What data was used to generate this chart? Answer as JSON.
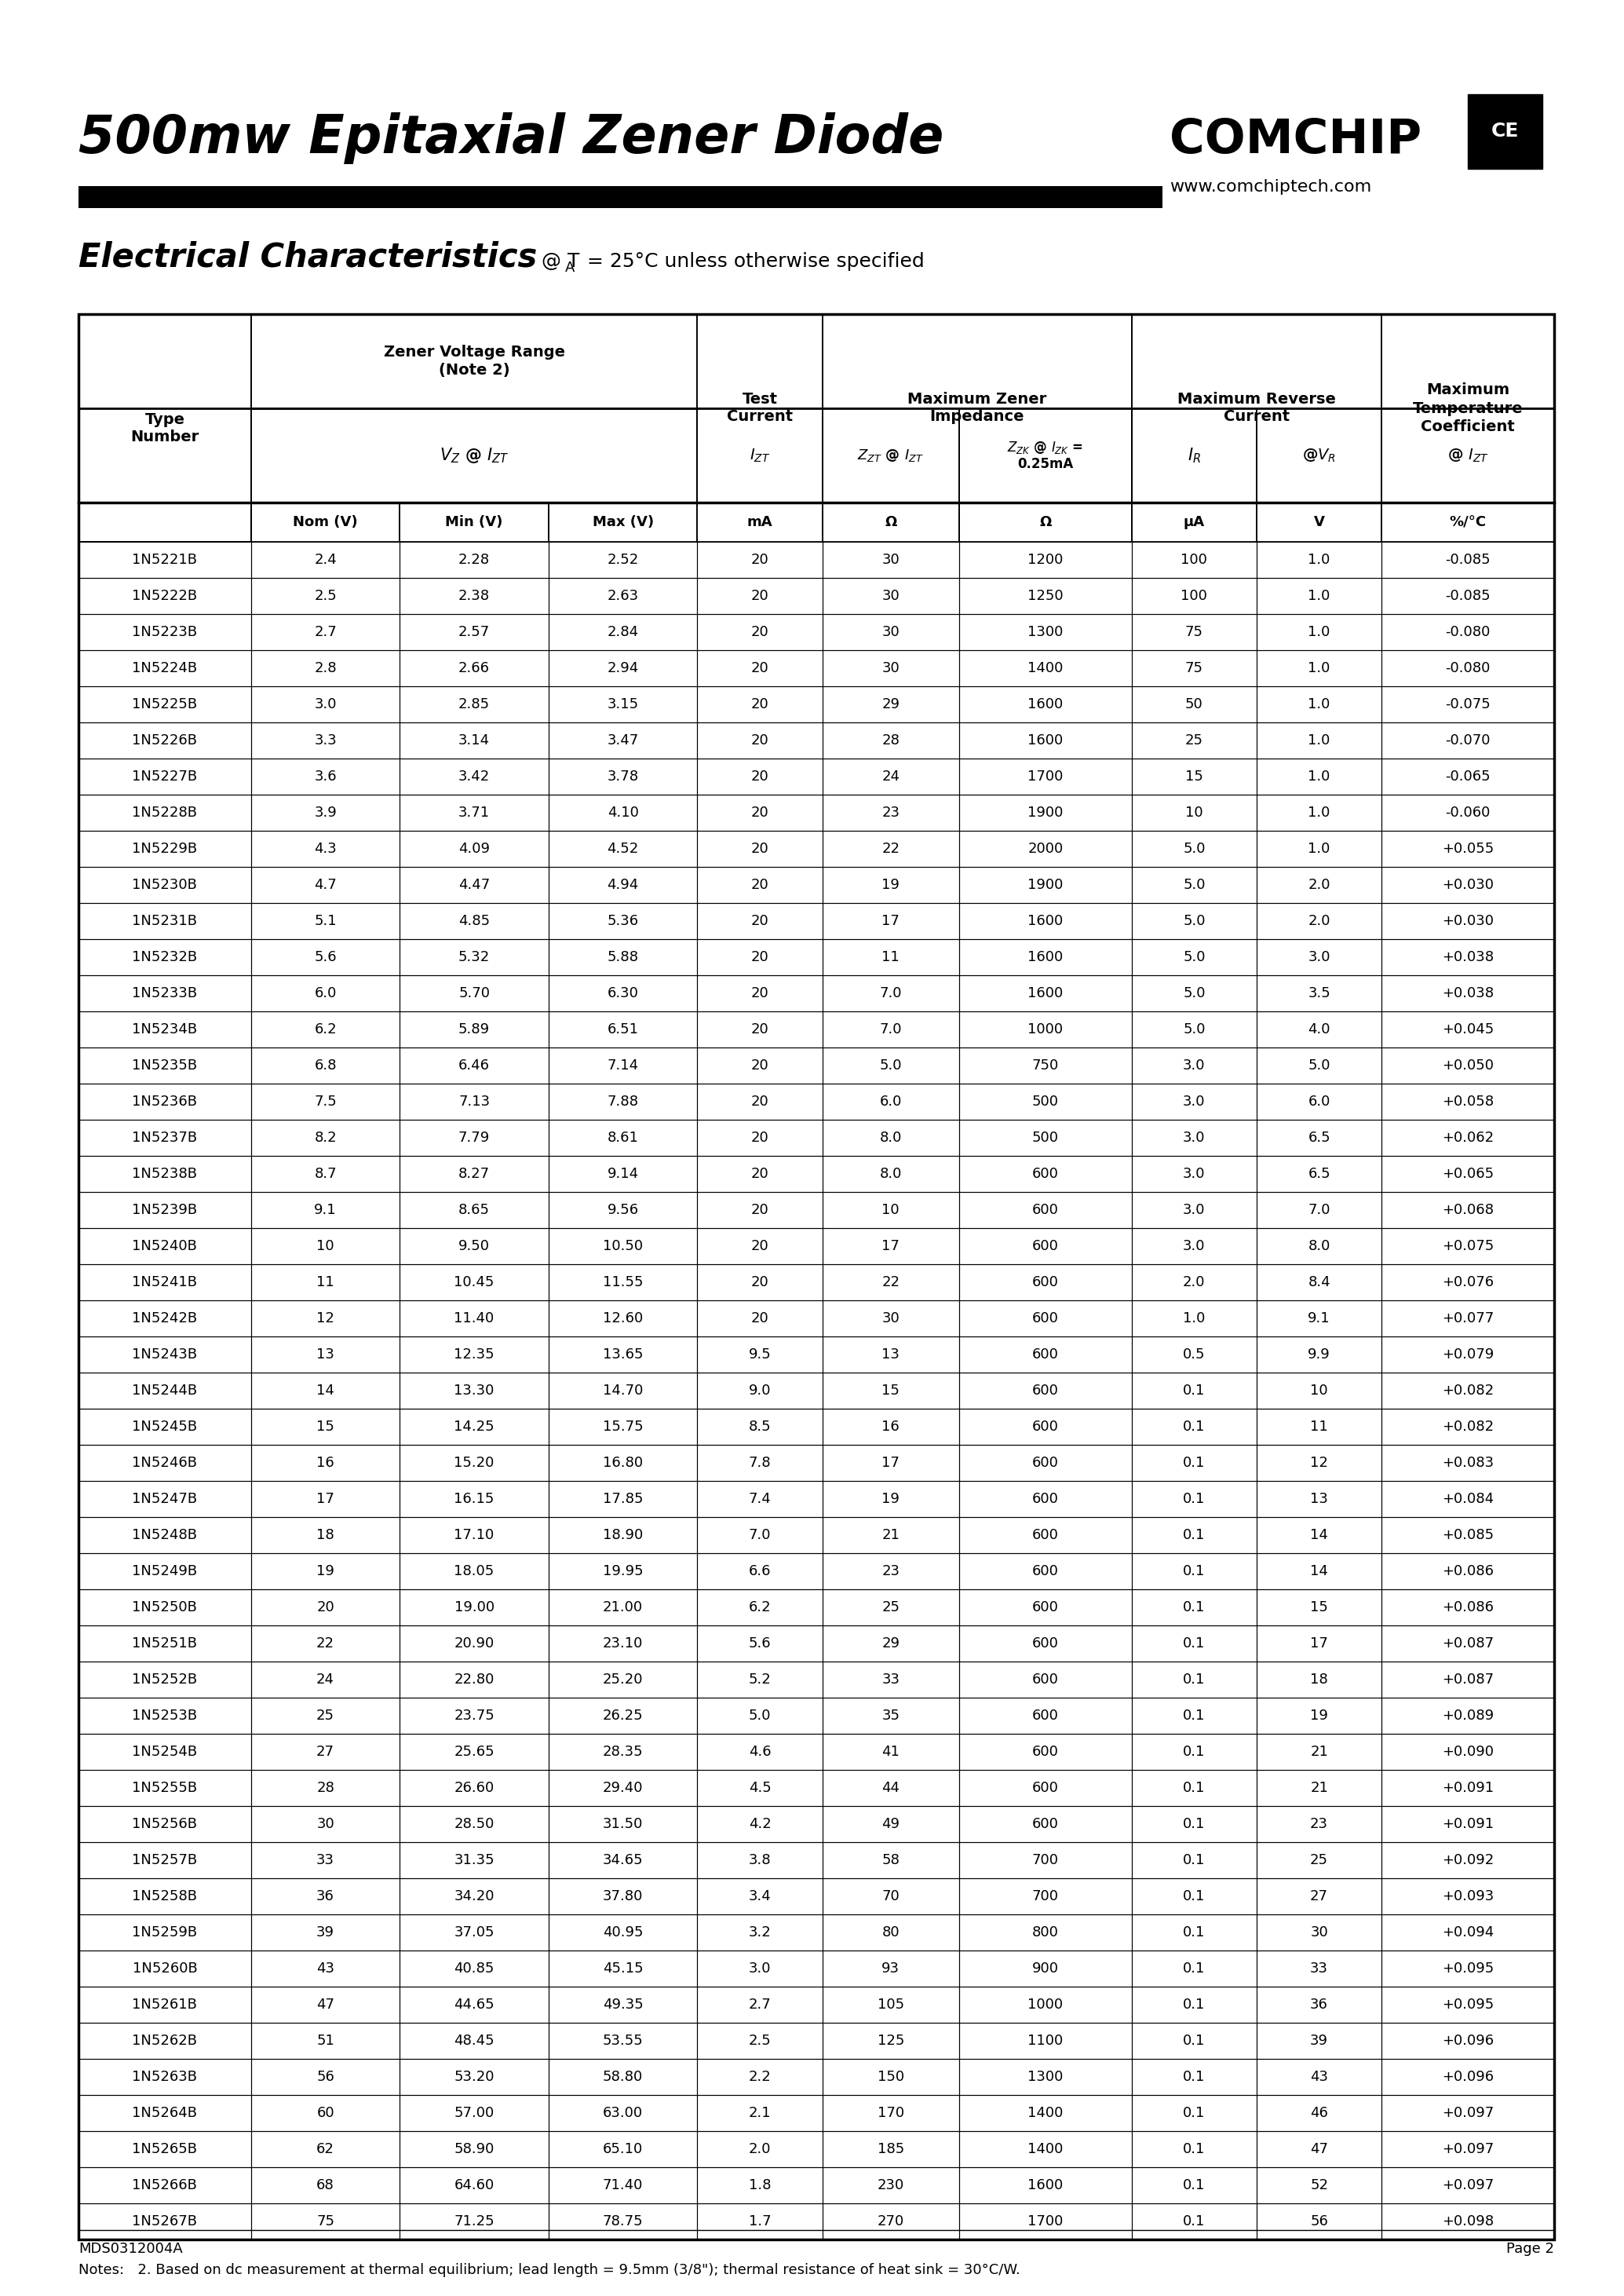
{
  "title": "500mw Epitaxial Zener Diode",
  "subtitle_label": "Electrical Characteristics",
  "subtitle_note": "@ TA = 25°C unless otherwise specified",
  "company": "COMCHIP",
  "website": "www.comchiptech.com",
  "note": "Notes:   2. Based on dc measurement at thermal equilibrium; lead length = 9.5mm (3/8\"); thermal resistance of heat sink = 30°C/W.",
  "table_data": [
    [
      "1N5221B",
      "2.4",
      "2.28",
      "2.52",
      "20",
      "30",
      "1200",
      "100",
      "1.0",
      "-0.085"
    ],
    [
      "1N5222B",
      "2.5",
      "2.38",
      "2.63",
      "20",
      "30",
      "1250",
      "100",
      "1.0",
      "-0.085"
    ],
    [
      "1N5223B",
      "2.7",
      "2.57",
      "2.84",
      "20",
      "30",
      "1300",
      "75",
      "1.0",
      "-0.080"
    ],
    [
      "1N5224B",
      "2.8",
      "2.66",
      "2.94",
      "20",
      "30",
      "1400",
      "75",
      "1.0",
      "-0.080"
    ],
    [
      "1N5225B",
      "3.0",
      "2.85",
      "3.15",
      "20",
      "29",
      "1600",
      "50",
      "1.0",
      "-0.075"
    ],
    [
      "1N5226B",
      "3.3",
      "3.14",
      "3.47",
      "20",
      "28",
      "1600",
      "25",
      "1.0",
      "-0.070"
    ],
    [
      "1N5227B",
      "3.6",
      "3.42",
      "3.78",
      "20",
      "24",
      "1700",
      "15",
      "1.0",
      "-0.065"
    ],
    [
      "1N5228B",
      "3.9",
      "3.71",
      "4.10",
      "20",
      "23",
      "1900",
      "10",
      "1.0",
      "-0.060"
    ],
    [
      "1N5229B",
      "4.3",
      "4.09",
      "4.52",
      "20",
      "22",
      "2000",
      "5.0",
      "1.0",
      "+0.055"
    ],
    [
      "1N5230B",
      "4.7",
      "4.47",
      "4.94",
      "20",
      "19",
      "1900",
      "5.0",
      "2.0",
      "+0.030"
    ],
    [
      "1N5231B",
      "5.1",
      "4.85",
      "5.36",
      "20",
      "17",
      "1600",
      "5.0",
      "2.0",
      "+0.030"
    ],
    [
      "1N5232B",
      "5.6",
      "5.32",
      "5.88",
      "20",
      "11",
      "1600",
      "5.0",
      "3.0",
      "+0.038"
    ],
    [
      "1N5233B",
      "6.0",
      "5.70",
      "6.30",
      "20",
      "7.0",
      "1600",
      "5.0",
      "3.5",
      "+0.038"
    ],
    [
      "1N5234B",
      "6.2",
      "5.89",
      "6.51",
      "20",
      "7.0",
      "1000",
      "5.0",
      "4.0",
      "+0.045"
    ],
    [
      "1N5235B",
      "6.8",
      "6.46",
      "7.14",
      "20",
      "5.0",
      "750",
      "3.0",
      "5.0",
      "+0.050"
    ],
    [
      "1N5236B",
      "7.5",
      "7.13",
      "7.88",
      "20",
      "6.0",
      "500",
      "3.0",
      "6.0",
      "+0.058"
    ],
    [
      "1N5237B",
      "8.2",
      "7.79",
      "8.61",
      "20",
      "8.0",
      "500",
      "3.0",
      "6.5",
      "+0.062"
    ],
    [
      "1N5238B",
      "8.7",
      "8.27",
      "9.14",
      "20",
      "8.0",
      "600",
      "3.0",
      "6.5",
      "+0.065"
    ],
    [
      "1N5239B",
      "9.1",
      "8.65",
      "9.56",
      "20",
      "10",
      "600",
      "3.0",
      "7.0",
      "+0.068"
    ],
    [
      "1N5240B",
      "10",
      "9.50",
      "10.50",
      "20",
      "17",
      "600",
      "3.0",
      "8.0",
      "+0.075"
    ],
    [
      "1N5241B",
      "11",
      "10.45",
      "11.55",
      "20",
      "22",
      "600",
      "2.0",
      "8.4",
      "+0.076"
    ],
    [
      "1N5242B",
      "12",
      "11.40",
      "12.60",
      "20",
      "30",
      "600",
      "1.0",
      "9.1",
      "+0.077"
    ],
    [
      "1N5243B",
      "13",
      "12.35",
      "13.65",
      "9.5",
      "13",
      "600",
      "0.5",
      "9.9",
      "+0.079"
    ],
    [
      "1N5244B",
      "14",
      "13.30",
      "14.70",
      "9.0",
      "15",
      "600",
      "0.1",
      "10",
      "+0.082"
    ],
    [
      "1N5245B",
      "15",
      "14.25",
      "15.75",
      "8.5",
      "16",
      "600",
      "0.1",
      "11",
      "+0.082"
    ],
    [
      "1N5246B",
      "16",
      "15.20",
      "16.80",
      "7.8",
      "17",
      "600",
      "0.1",
      "12",
      "+0.083"
    ],
    [
      "1N5247B",
      "17",
      "16.15",
      "17.85",
      "7.4",
      "19",
      "600",
      "0.1",
      "13",
      "+0.084"
    ],
    [
      "1N5248B",
      "18",
      "17.10",
      "18.90",
      "7.0",
      "21",
      "600",
      "0.1",
      "14",
      "+0.085"
    ],
    [
      "1N5249B",
      "19",
      "18.05",
      "19.95",
      "6.6",
      "23",
      "600",
      "0.1",
      "14",
      "+0.086"
    ],
    [
      "1N5250B",
      "20",
      "19.00",
      "21.00",
      "6.2",
      "25",
      "600",
      "0.1",
      "15",
      "+0.086"
    ],
    [
      "1N5251B",
      "22",
      "20.90",
      "23.10",
      "5.6",
      "29",
      "600",
      "0.1",
      "17",
      "+0.087"
    ],
    [
      "1N5252B",
      "24",
      "22.80",
      "25.20",
      "5.2",
      "33",
      "600",
      "0.1",
      "18",
      "+0.087"
    ],
    [
      "1N5253B",
      "25",
      "23.75",
      "26.25",
      "5.0",
      "35",
      "600",
      "0.1",
      "19",
      "+0.089"
    ],
    [
      "1N5254B",
      "27",
      "25.65",
      "28.35",
      "4.6",
      "41",
      "600",
      "0.1",
      "21",
      "+0.090"
    ],
    [
      "1N5255B",
      "28",
      "26.60",
      "29.40",
      "4.5",
      "44",
      "600",
      "0.1",
      "21",
      "+0.091"
    ],
    [
      "1N5256B",
      "30",
      "28.50",
      "31.50",
      "4.2",
      "49",
      "600",
      "0.1",
      "23",
      "+0.091"
    ],
    [
      "1N5257B",
      "33",
      "31.35",
      "34.65",
      "3.8",
      "58",
      "700",
      "0.1",
      "25",
      "+0.092"
    ],
    [
      "1N5258B",
      "36",
      "34.20",
      "37.80",
      "3.4",
      "70",
      "700",
      "0.1",
      "27",
      "+0.093"
    ],
    [
      "1N5259B",
      "39",
      "37.05",
      "40.95",
      "3.2",
      "80",
      "800",
      "0.1",
      "30",
      "+0.094"
    ],
    [
      "1N5260B",
      "43",
      "40.85",
      "45.15",
      "3.0",
      "93",
      "900",
      "0.1",
      "33",
      "+0.095"
    ],
    [
      "1N5261B",
      "47",
      "44.65",
      "49.35",
      "2.7",
      "105",
      "1000",
      "0.1",
      "36",
      "+0.095"
    ],
    [
      "1N5262B",
      "51",
      "48.45",
      "53.55",
      "2.5",
      "125",
      "1100",
      "0.1",
      "39",
      "+0.096"
    ],
    [
      "1N5263B",
      "56",
      "53.20",
      "58.80",
      "2.2",
      "150",
      "1300",
      "0.1",
      "43",
      "+0.096"
    ],
    [
      "1N5264B",
      "60",
      "57.00",
      "63.00",
      "2.1",
      "170",
      "1400",
      "0.1",
      "46",
      "+0.097"
    ],
    [
      "1N5265B",
      "62",
      "58.90",
      "65.10",
      "2.0",
      "185",
      "1400",
      "0.1",
      "47",
      "+0.097"
    ],
    [
      "1N5266B",
      "68",
      "64.60",
      "71.40",
      "1.8",
      "230",
      "1600",
      "0.1",
      "52",
      "+0.097"
    ],
    [
      "1N5267B",
      "75",
      "71.25",
      "78.75",
      "1.7",
      "270",
      "1700",
      "0.1",
      "56",
      "+0.098"
    ]
  ],
  "bg_color": "#ffffff"
}
